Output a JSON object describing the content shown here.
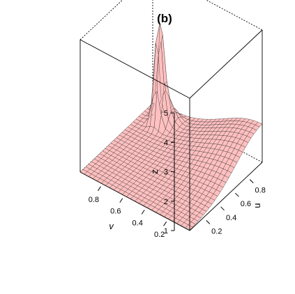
{
  "chart_data": {
    "type": "surface3d",
    "title": "(b)",
    "xlabel": "v",
    "ylabel": "u",
    "zlabel": "z",
    "x_ticks": [
      "0.2",
      "0.4",
      "0.6",
      "0.8"
    ],
    "y_ticks": [
      "0.2",
      "0.4",
      "0.6",
      "0.8"
    ],
    "z_ticks": [
      "1",
      "2",
      "3",
      "4",
      "5"
    ],
    "xlim": [
      0,
      1
    ],
    "ylim": [
      0,
      1
    ],
    "zlim": [
      1,
      5.5
    ],
    "grid_size": 26,
    "peaks": [
      {
        "name": "central-spike",
        "v": 0.82,
        "u": 0.82,
        "height": 4.8,
        "width": 0.035
      },
      {
        "name": "spike-shoulder",
        "v": 0.76,
        "u": 0.88,
        "height": 1.6,
        "width": 0.05
      },
      {
        "name": "corner-ridge",
        "v": 0.0,
        "u": 1.0,
        "height": 2.3,
        "width": 0.35
      }
    ],
    "base_level": 1.0,
    "colors": {
      "surface": "#ffc0c0",
      "mesh": "#222222",
      "box": "#000000"
    }
  }
}
